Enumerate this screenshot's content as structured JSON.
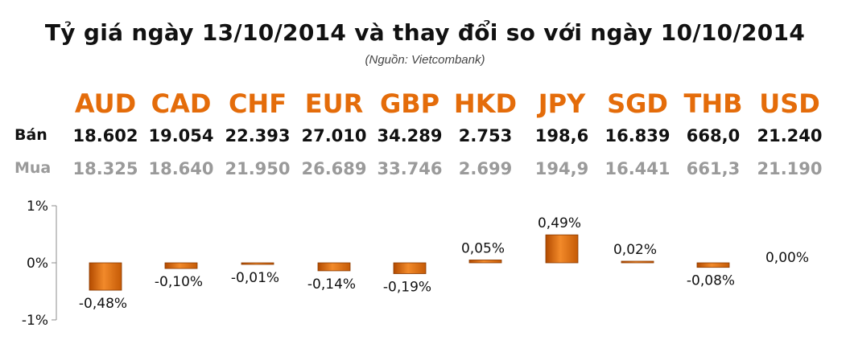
{
  "title": "Tỷ giá ngày 13/10/2014 và thay đổi so với ngày 10/10/2014",
  "source": "(Nguồn: Vietcombank)",
  "row_labels": {
    "sell": "Bán",
    "buy": "Mua"
  },
  "currencies": [
    {
      "code": "AUD",
      "sell": "18.602",
      "buy": "18.325",
      "change_label": "-0,48%"
    },
    {
      "code": "CAD",
      "sell": "19.054",
      "buy": "18.640",
      "change_label": "-0,10%"
    },
    {
      "code": "CHF",
      "sell": "22.393",
      "buy": "21.950",
      "change_label": "-0,01%"
    },
    {
      "code": "EUR",
      "sell": "27.010",
      "buy": "26.689",
      "change_label": "-0,14%"
    },
    {
      "code": "GBP",
      "sell": "34.289",
      "buy": "33.746",
      "change_label": "-0,19%"
    },
    {
      "code": "HKD",
      "sell": "2.753",
      "buy": "2.699",
      "change_label": "0,05%"
    },
    {
      "code": "JPY",
      "sell": "198,6",
      "buy": "194,9",
      "change_label": "0,49%"
    },
    {
      "code": "SGD",
      "sell": "16.839",
      "buy": "16.441",
      "change_label": "0,02%"
    },
    {
      "code": "THB",
      "sell": "668,0",
      "buy": "661,3",
      "change_label": "-0,08%"
    },
    {
      "code": "USD",
      "sell": "21.240",
      "buy": "21.190",
      "change_label": "0,00%"
    }
  ],
  "colors": {
    "currency_code": "#e46c0a",
    "bar": "#e46c0a",
    "sell_text": "#111111",
    "buy_text": "#9a9a9a"
  },
  "chart_data": {
    "type": "bar",
    "categories": [
      "AUD",
      "CAD",
      "CHF",
      "EUR",
      "GBP",
      "HKD",
      "JPY",
      "SGD",
      "THB",
      "USD"
    ],
    "values": [
      -0.48,
      -0.1,
      -0.01,
      -0.14,
      -0.19,
      0.05,
      0.49,
      0.02,
      -0.08,
      0.0
    ],
    "data_labels": [
      "-0,48%",
      "-0,10%",
      "-0,01%",
      "-0,14%",
      "-0,19%",
      "0,05%",
      "0,49%",
      "0,02%",
      "-0,08%",
      "0,00%"
    ],
    "yticks": [
      "1%",
      "0%",
      "-1%"
    ],
    "ytick_values": [
      1,
      0,
      -1
    ],
    "ylim": [
      -1,
      1
    ],
    "unit": "%",
    "grid": false,
    "legend": "none"
  }
}
